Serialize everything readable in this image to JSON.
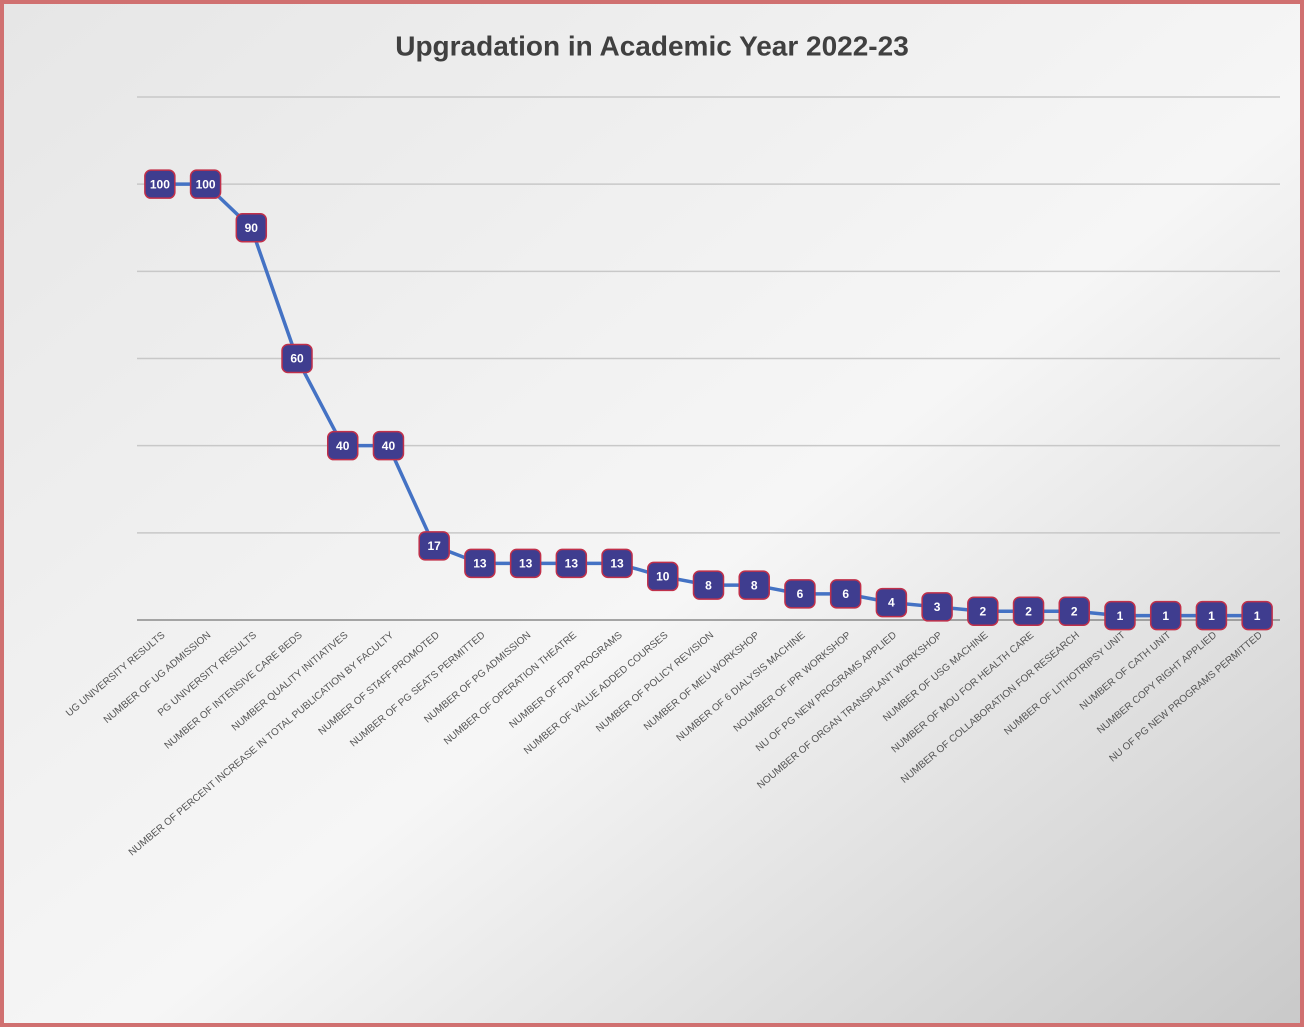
{
  "chart_data": {
    "type": "line",
    "title": "Upgradation in Academic Year 2022-23",
    "categories": [
      "UG UNIVERSITY RESULTS",
      "NUMBER OF UG ADMISSION",
      "PG UNIVERSITY RESULTS",
      "NUMBER OF INTENSIVE CARE BEDS",
      "NUMBER QUALITY INITIATIVES",
      "NUMBER OF PERCENT INCREASE IN TOTAL PUBLICATION BY FACULTY",
      "NUMBER OF STAFF PROMOTED",
      "NUMBER OF PG SEATS PERMITTED",
      "NUMBER OF PG ADMISSION",
      "NUMBER OF OPERATION THEATRE",
      "NUMBER OF FDP PROGRAMS",
      "NUMBER OF VALUE ADDED COURSES",
      "NUMBER OF POLICY REVISION",
      "NUMBER OF MEU WORKSHOP",
      "NUMBER OF 6 DIALYSIS MACHINE",
      "NOUMBER OF IPR WORKSHOP",
      "NU OF PG NEW PROGRAMS APPLIED",
      "NOUMBER OF ORGAN TRANSPLANT WORKSHOP",
      "NUMBER OF USG MACHINE",
      "NUMBER OF MOU FOR HEALTH CARE",
      "NUMBER OF COLLABORATION FOR RESEARCH",
      "NUMBER OF LITHOTRIPSY UNIT",
      "NUMBER OF CATH UNIT",
      "NUMBER COPY RIGHT APPLIED",
      "NU OF PG NEW PROGRAMS PERMITTED"
    ],
    "values": [
      100,
      100,
      90,
      60,
      40,
      40,
      17,
      13,
      13,
      13,
      13,
      10,
      8,
      8,
      6,
      6,
      4,
      3,
      2,
      2,
      2,
      1,
      1,
      1,
      1
    ],
    "color": "#4472c4",
    "marker_color": "#3f3d8f",
    "ylim": [
      0,
      120
    ],
    "yticks": [
      0,
      20,
      40,
      60,
      80,
      100,
      120
    ],
    "grid": true
  }
}
